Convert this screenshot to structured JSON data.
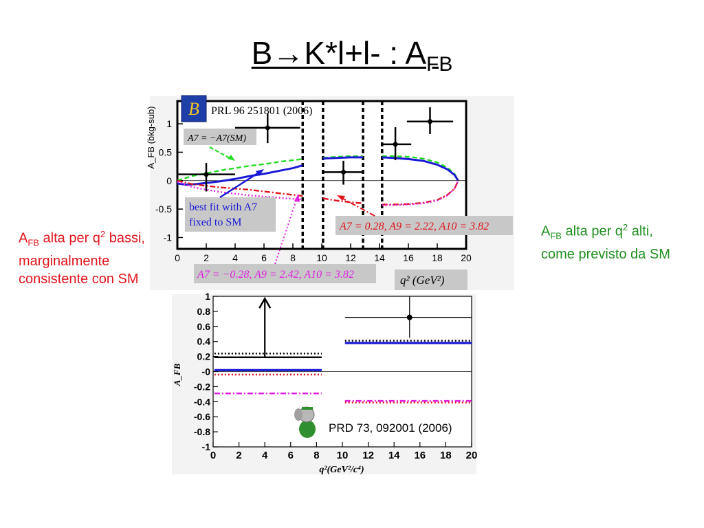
{
  "slide": {
    "title_main": "B→K*l+l- : A",
    "title_sub": "FB",
    "note_left": {
      "a": "A",
      "sub": "FB",
      "text1": " alta per q",
      "sup": "2",
      "text2": " bassi, marginalmente consistente con SM"
    },
    "note_right": {
      "a": "A",
      "sub": "FB",
      "text1": " alta per q",
      "sup": "2",
      "text2": " alti, come previsto da SM"
    }
  },
  "colors": {
    "black": "#000000",
    "blue": "#1a1ad6",
    "green": "#22dd22",
    "red": "#e0141c",
    "magenta": "#e020e0",
    "box": "#c8c8c8"
  },
  "chart_data": [
    {
      "type": "scatter",
      "experiment_label": "PRL 96 251801 (2006)",
      "logo": "belle-logo",
      "ylabel": "A_FB (bkg-sub)",
      "xlabel": "q² (GeV²)",
      "xlim": [
        0,
        20
      ],
      "ylim": [
        -1.2,
        1.4
      ],
      "xticks": [
        0,
        2,
        4,
        6,
        8,
        10,
        12,
        14,
        16,
        18,
        20
      ],
      "yticks": [
        -1,
        -0.5,
        0,
        0.5,
        1
      ],
      "yticklabels": [
        "-1",
        "-0.5",
        "0",
        "0.5",
        "1"
      ],
      "veto_lines": [
        8.68,
        10.09,
        12.86,
        14.18
      ],
      "points": [
        {
          "x": 2.0,
          "y": 0.11,
          "xerr": [
            2.0,
            2.0
          ],
          "yerr": [
            0.3,
            0.2
          ]
        },
        {
          "x": 6.25,
          "y": 0.93,
          "xerr": [
            2.25,
            2.25
          ],
          "yerr": [
            0.27,
            0.25
          ]
        },
        {
          "x": 11.5,
          "y": 0.15,
          "xerr": [
            1.5,
            1.4
          ],
          "yerr": [
            0.22,
            0.2
          ]
        },
        {
          "x": 15.1,
          "y": 0.64,
          "xerr": [
            1.0,
            1.1
          ],
          "yerr": [
            0.28,
            0.3
          ]
        },
        {
          "x": 17.5,
          "y": 1.04,
          "xerr": [
            1.6,
            1.6
          ],
          "yerr": [
            0.22,
            0.25
          ]
        }
      ],
      "series": [
        {
          "name": "A7 = -A7(SM)",
          "color": "#22dd22",
          "style": "dashed",
          "x": [
            0.0,
            1,
            2,
            3,
            4,
            5,
            6,
            7,
            8,
            8.68,
            10.09,
            11,
            12,
            12.86,
            14.18,
            15,
            16,
            17,
            18,
            18.7,
            19.2,
            19.45
          ],
          "y": [
            0.0,
            0.08,
            0.13,
            0.18,
            0.22,
            0.26,
            0.29,
            0.33,
            0.36,
            0.38,
            0.4,
            0.42,
            0.43,
            0.43,
            0.43,
            0.43,
            0.42,
            0.39,
            0.32,
            0.23,
            0.12,
            0.0
          ]
        },
        {
          "name": "SM",
          "color": "#1a1ad6",
          "style": "solid",
          "x": [
            0.0,
            0.6,
            1.3,
            2,
            3,
            4,
            5,
            6,
            7,
            8,
            8.68,
            10.09,
            11,
            12,
            12.86,
            14.18,
            15,
            16,
            17,
            18,
            18.7,
            19.2,
            19.45
          ],
          "y": [
            -0.05,
            -0.07,
            -0.06,
            -0.04,
            -0.01,
            0.03,
            0.08,
            0.12,
            0.17,
            0.22,
            0.27,
            0.39,
            0.4,
            0.41,
            0.41,
            0.41,
            0.4,
            0.38,
            0.35,
            0.28,
            0.2,
            0.1,
            0.0
          ]
        },
        {
          "name": "A7 = 0.28, A9 = 2.22, A10 = 3.82",
          "color": "#e0141c",
          "style": "dashdot",
          "x": [
            0.0,
            1,
            2,
            3,
            4,
            5,
            6,
            7,
            8,
            8.68,
            10.09,
            11,
            12,
            12.86,
            14.18,
            15,
            16,
            17,
            18,
            18.7,
            19.2,
            19.45
          ],
          "y": [
            0.0,
            -0.06,
            -0.09,
            -0.12,
            -0.14,
            -0.16,
            -0.19,
            -0.22,
            -0.25,
            -0.27,
            -0.31,
            -0.35,
            -0.38,
            -0.4,
            -0.42,
            -0.42,
            -0.41,
            -0.39,
            -0.34,
            -0.25,
            -0.14,
            0.0
          ]
        },
        {
          "name": "A7 = -0.28, A9 = 2.42, A10 = 3.82",
          "color": "#e020e0",
          "style": "dotted",
          "x": [
            0.0,
            1,
            2,
            3,
            4,
            5,
            6,
            7,
            8,
            8.68,
            12.86,
            14.18,
            15,
            16,
            17,
            18,
            18.7,
            19.2,
            19.45
          ],
          "y": [
            -0.02,
            -0.11,
            -0.16,
            -0.2,
            -0.23,
            -0.26,
            -0.28,
            -0.3,
            -0.32,
            -0.33,
            -0.42,
            -0.43,
            -0.43,
            -0.42,
            -0.4,
            -0.35,
            -0.26,
            -0.14,
            0.0
          ]
        }
      ],
      "legend_box_sm": "A7 = −A7(SM)",
      "best_fit_line1": "best fit with A7",
      "best_fit_line2": "fixed to SM",
      "red_box": "A7 = 0.28, A9 = 2.22, A10 = 3.82",
      "magenta_box": "A7 = −0.28, A9 = 2.42, A10 = 3.82"
    },
    {
      "type": "bar",
      "experiment_label": "PRD 73, 092001 (2006)",
      "logo": "babar-logo",
      "ylabel": "A_FB",
      "xlabel": "q²(GeV²/c⁴)",
      "xlim": [
        0,
        20
      ],
      "ylim": [
        -1,
        1
      ],
      "xticks": [
        0,
        2,
        4,
        6,
        8,
        10,
        12,
        14,
        16,
        18,
        20
      ],
      "yticks": [
        1,
        0.8,
        0.6,
        0.4,
        0.2,
        0,
        -0.2,
        -0.4,
        -0.6,
        -0.8,
        -1
      ],
      "yticklabels": [
        "1",
        "0.8",
        "0.6",
        "0.4",
        "0.2",
        "-0",
        "-0.2",
        "-0.4",
        "-0.6",
        "-0.8",
        "-1"
      ],
      "bins": [
        [
          0.1,
          8.4
        ],
        [
          10.2,
          20
        ]
      ],
      "measurements": [
        {
          "bin": 0,
          "value": 0.19,
          "lower_limit_arrow": true,
          "arrow_x": 4.0,
          "arrow_to": 0.97
        },
        {
          "bin": 1,
          "value": 0.72,
          "x": 15.2,
          "yerr": [
            0.27,
            0.28
          ],
          "xerr": [
            5.0,
            4.8
          ]
        }
      ],
      "predictions": [
        {
          "color": "#1a1ad6",
          "style": "solid",
          "values": [
            0.02,
            0.38
          ]
        },
        {
          "color": "#000000",
          "style": "dotted",
          "values": [
            0.24,
            0.41
          ]
        },
        {
          "color": "#e0141c",
          "style": "dotted",
          "values": [
            -0.04,
            -0.41
          ]
        },
        {
          "color": "#e020e0",
          "style": "dashdot",
          "values": [
            -0.29,
            -0.39
          ]
        }
      ]
    }
  ]
}
